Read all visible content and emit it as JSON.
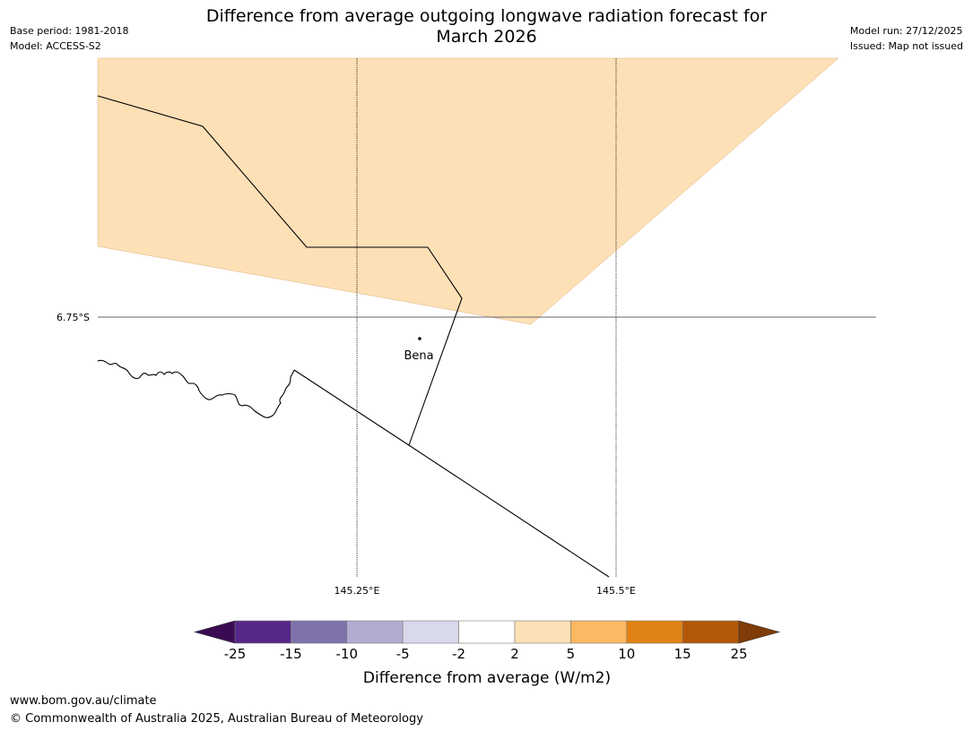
{
  "title_line1": "Difference from average outgoing longwave radiation forecast for",
  "title_line2": "March 2026",
  "meta_left": {
    "base_period": "Base period: 1981-2018",
    "model": "Model: ACCESS-S2"
  },
  "meta_right": {
    "model_run": "Model run: 27/12/2025",
    "issued": "Issued: Map not issued"
  },
  "map": {
    "lat_label": "6.75°S",
    "lon_labels": [
      "145.25°E",
      "145.5°E"
    ],
    "place": "Bena",
    "anomaly_fill_color": "#fde0b6"
  },
  "colorbar": {
    "ticks": [
      "-25",
      "-15",
      "-10",
      "-5",
      "-2",
      "2",
      "5",
      "10",
      "15",
      "25"
    ],
    "colors": [
      "#3a0b52",
      "#542788",
      "#8073ac",
      "#b2abd2",
      "#d8daeb",
      "#ffffff",
      "#fee0b6",
      "#fdb863",
      "#e08214",
      "#b35806",
      "#7f3b08"
    ],
    "label": "Difference from average (W/m2)"
  },
  "footer": {
    "url": "www.bom.gov.au/climate",
    "copyright": "© Commonwealth of Australia 2025, Australian Bureau of Meteorology"
  }
}
